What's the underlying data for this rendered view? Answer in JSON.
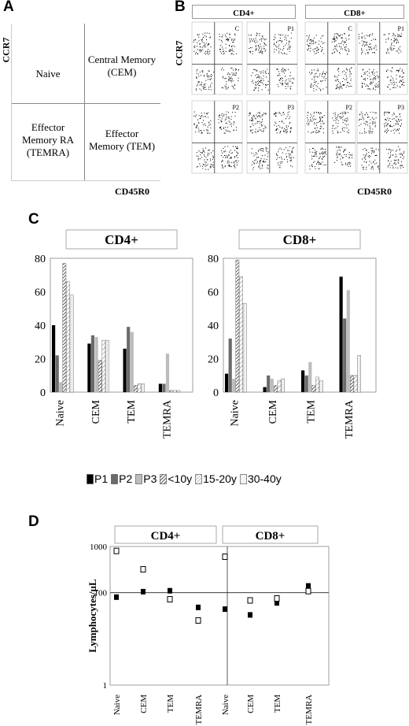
{
  "panels": {
    "a": "A",
    "b": "B",
    "c": "C",
    "d": "D"
  },
  "panelA": {
    "y_axis": "CCR7",
    "x_axis": "CD45R0",
    "quadrants": {
      "top_left": "Naive",
      "top_right": "Central Memory (CEM)",
      "bottom_left": "Effector Memory RA (TEMRA)",
      "bottom_right": "Effector Memory (TEM)"
    }
  },
  "panelB": {
    "y_axis": "CCR7",
    "x_axis": "CD45R0",
    "groups": [
      "CD4+",
      "CD8+"
    ],
    "plots": [
      {
        "label": "C",
        "seed": 11,
        "group": "CD4+"
      },
      {
        "label": "P1",
        "seed": 23,
        "group": "CD4+"
      },
      {
        "label": "C",
        "seed": 37,
        "group": "CD8+"
      },
      {
        "label": "P1",
        "seed": 41,
        "group": "CD8+"
      },
      {
        "label": "P2",
        "seed": 53,
        "group": "CD4+"
      },
      {
        "label": "P3",
        "seed": 67,
        "group": "CD4+"
      },
      {
        "label": "P2",
        "seed": 71,
        "group": "CD8+"
      },
      {
        "label": "P3",
        "seed": 89,
        "group": "CD8+"
      }
    ]
  },
  "chart_data": [
    {
      "panel": "C",
      "type": "bar",
      "title": "CD4+",
      "categories": [
        "Naive",
        "CEM",
        "TEM",
        "TEMRA"
      ],
      "ylim": [
        0,
        80
      ],
      "yticks": [
        0,
        20,
        40,
        60,
        80
      ],
      "series": [
        {
          "name": "P1",
          "values": [
            40,
            29,
            26,
            5
          ]
        },
        {
          "name": "P2",
          "values": [
            22,
            34,
            39,
            5
          ]
        },
        {
          "name": "P3",
          "values": [
            6,
            33,
            36,
            23
          ]
        },
        {
          "name": "<10y",
          "values": [
            77,
            19,
            4,
            1
          ]
        },
        {
          "name": "15-20y",
          "values": [
            66,
            31,
            5,
            1
          ]
        },
        {
          "name": "30-40y",
          "values": [
            58,
            31,
            5,
            1
          ]
        }
      ]
    },
    {
      "panel": "C",
      "type": "bar",
      "title": "CD8+",
      "categories": [
        "Naive",
        "CEM",
        "TEM",
        "TEMRA"
      ],
      "ylim": [
        0,
        80
      ],
      "yticks": [
        0,
        20,
        40,
        60,
        80
      ],
      "series": [
        {
          "name": "P1",
          "values": [
            11,
            3,
            13,
            69
          ]
        },
        {
          "name": "P2",
          "values": [
            32,
            10,
            10,
            44
          ]
        },
        {
          "name": "P3",
          "values": [
            8,
            8,
            18,
            61
          ]
        },
        {
          "name": "<10y",
          "values": [
            79,
            4,
            4,
            10
          ]
        },
        {
          "name": "15-20y",
          "values": [
            69,
            7,
            9,
            10
          ]
        },
        {
          "name": "30-40y",
          "values": [
            53,
            8,
            7,
            22
          ]
        }
      ]
    },
    {
      "panel": "D",
      "type": "scatter",
      "y_scale": "log",
      "ylabel": "Lymphocytes/µL",
      "ylim": [
        1,
        1000
      ],
      "yticks": [
        1,
        100,
        1000
      ],
      "reference_line": 100,
      "groups": [
        {
          "title": "CD4+",
          "categories": [
            "Naive",
            "CEM",
            "TEM",
            "TEMRA"
          ],
          "filled": [
            80,
            105,
            110,
            48
          ],
          "open": [
            800,
            320,
            72,
            25
          ]
        },
        {
          "title": "CD8+",
          "categories": [
            "Naive",
            "CEM",
            "TEM",
            "TEMRA"
          ],
          "filled": [
            44,
            33,
            60,
            140
          ],
          "open": [
            600,
            68,
            75,
            108
          ]
        }
      ]
    }
  ],
  "colors": {
    "P1": "#000000",
    "P2": "#6b6b6b",
    "P3": "#bdbdbd"
  }
}
